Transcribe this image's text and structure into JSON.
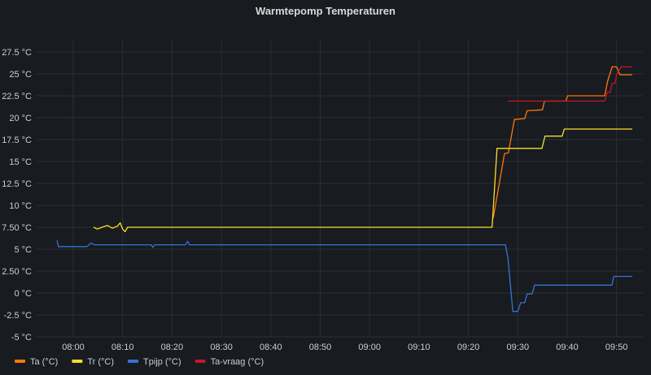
{
  "chart_data": {
    "type": "line",
    "title": "Warmtepomp Temperaturen",
    "xlabel": "",
    "ylabel": "",
    "x_ticks": [
      "08:00",
      "08:10",
      "08:20",
      "08:30",
      "08:40",
      "08:50",
      "09:00",
      "09:10",
      "09:20",
      "09:30",
      "09:40",
      "09:50"
    ],
    "y_ticks": [
      {
        "value": 27.5,
        "label": "27.5 °C"
      },
      {
        "value": 25,
        "label": "25 °C"
      },
      {
        "value": 22.5,
        "label": "22.5 °C"
      },
      {
        "value": 20,
        "label": "20 °C"
      },
      {
        "value": 17.5,
        "label": "17.5 °C"
      },
      {
        "value": 15,
        "label": "15 °C"
      },
      {
        "value": 12.5,
        "label": "12.5 °C"
      },
      {
        "value": 10,
        "label": "10 °C"
      },
      {
        "value": 7.5,
        "label": "7.50 °C"
      },
      {
        "value": 5,
        "label": "5 °C"
      },
      {
        "value": 2.5,
        "label": "2.50 °C"
      },
      {
        "value": 0,
        "label": "0 °C"
      },
      {
        "value": -2.5,
        "label": "-2.5 °C"
      },
      {
        "value": -5,
        "label": "-5 °C"
      }
    ],
    "ylim": [
      -5,
      27.5
    ],
    "grid": true,
    "legend_position": "bottom-left",
    "series": [
      {
        "name": "Ta (°C)",
        "color": "#FF780A",
        "points": [
          [
            "09:25:00",
            8.5
          ],
          [
            "09:27:00",
            14.9
          ],
          [
            "09:27:18",
            15.9
          ],
          [
            "09:28:06",
            16
          ],
          [
            "09:29:18",
            19.8
          ],
          [
            "09:31:24",
            19.9
          ],
          [
            "09:31:54",
            20.8
          ],
          [
            "09:35:00",
            20.9
          ],
          [
            "09:35:24",
            21.9
          ],
          [
            "09:39:42",
            21.9
          ],
          [
            "09:40:06",
            22.5
          ],
          [
            "09:47:36",
            22.5
          ],
          [
            "09:48:12",
            24.2
          ],
          [
            "09:49:06",
            25.8
          ],
          [
            "09:50:00",
            25.8
          ],
          [
            "09:50:42",
            24.9
          ],
          [
            "09:53:12",
            24.9
          ]
        ]
      },
      {
        "name": "Tr (°C)",
        "color": "#FADE2A",
        "points": [
          [
            "08:04:06",
            7.5
          ],
          [
            "08:04:54",
            7.3
          ],
          [
            "08:05:48",
            7.5
          ],
          [
            "08:06:54",
            7.7
          ],
          [
            "08:07:54",
            7.4
          ],
          [
            "08:08:54",
            7.6
          ],
          [
            "08:09:30",
            8.0
          ],
          [
            "08:10:00",
            7.3
          ],
          [
            "08:10:30",
            7.0
          ],
          [
            "08:11:00",
            7.5
          ],
          [
            "09:24:48",
            7.5
          ],
          [
            "09:25:48",
            16.5
          ],
          [
            "09:34:54",
            16.5
          ],
          [
            "09:35:30",
            17.9
          ],
          [
            "09:39:00",
            17.9
          ],
          [
            "09:39:24",
            18.7
          ],
          [
            "09:53:12",
            18.7
          ]
        ]
      },
      {
        "name": "Tpijp (°C)",
        "color": "#3274D9",
        "points": [
          [
            "07:56:42",
            6.0
          ],
          [
            "07:57:00",
            5.3
          ],
          [
            "08:02:48",
            5.3
          ],
          [
            "08:03:36",
            5.7
          ],
          [
            "08:04:18",
            5.5
          ],
          [
            "08:15:48",
            5.5
          ],
          [
            "08:16:06",
            5.2
          ],
          [
            "08:16:30",
            5.5
          ],
          [
            "08:22:42",
            5.5
          ],
          [
            "08:23:12",
            5.9
          ],
          [
            "08:23:30",
            5.5
          ],
          [
            "09:27:30",
            5.5
          ],
          [
            "09:28:00",
            4.0
          ],
          [
            "09:29:00",
            -2.1
          ],
          [
            "09:30:00",
            -2.1
          ],
          [
            "09:30:36",
            -1.1
          ],
          [
            "09:31:24",
            -1.1
          ],
          [
            "09:31:54",
            -0.1
          ],
          [
            "09:32:54",
            -0.1
          ],
          [
            "09:33:24",
            0.9
          ],
          [
            "09:49:06",
            0.9
          ],
          [
            "09:49:24",
            1.9
          ],
          [
            "09:53:12",
            1.9
          ]
        ]
      },
      {
        "name": "Ta-vraag (°C)",
        "color": "#C4162A",
        "points": [
          [
            "09:28:00",
            21.9
          ],
          [
            "09:47:36",
            21.9
          ],
          [
            "09:48:06",
            22.9
          ],
          [
            "09:48:42",
            22.9
          ],
          [
            "09:49:06",
            23.9
          ],
          [
            "09:49:42",
            23.9
          ],
          [
            "09:50:00",
            24.9
          ],
          [
            "09:50:54",
            25.8
          ],
          [
            "09:53:12",
            25.8
          ]
        ]
      }
    ]
  }
}
